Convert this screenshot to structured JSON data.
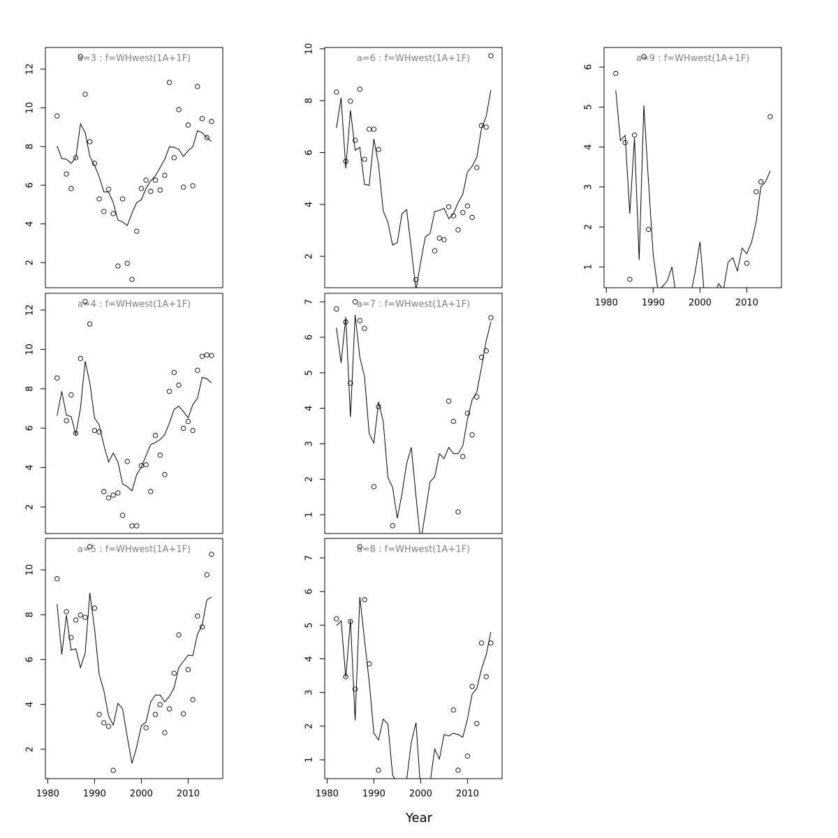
{
  "xlabel": "Year",
  "chart_data": [
    {
      "type": "line",
      "title": "a=3  :  f=WHwest(1A+1F)",
      "x": [
        1982,
        1983,
        1984,
        1985,
        1986,
        1987,
        1988,
        1989,
        1990,
        1991,
        1992,
        1993,
        1994,
        1995,
        1996,
        1997,
        1998,
        1999,
        2000,
        2001,
        2002,
        2003,
        2004,
        2005,
        2006,
        2007,
        2008,
        2009,
        2010,
        2011,
        2012,
        2013,
        2014,
        2015
      ],
      "xlim": [
        1979.5,
        2017.4
      ],
      "ylim": [
        0.7,
        13.12
      ],
      "yticks": [
        2,
        4,
        6,
        8,
        10,
        12
      ],
      "series": [
        {
          "marker": "line",
          "color": "#000000",
          "values": [
            8.03,
            7.38,
            7.34,
            7.13,
            7.42,
            9.18,
            8.71,
            7.49,
            7.02,
            6.44,
            5.65,
            5.65,
            5.1,
            4.2,
            4.1,
            3.91,
            4.56,
            5.1,
            5.25,
            5.83,
            6.22,
            6.48,
            6.91,
            7.34,
            7.99,
            7.96,
            7.85,
            7.49,
            7.78,
            7.99,
            8.82,
            8.71,
            8.46,
            8.25
          ]
        },
        {
          "marker": "circle",
          "color": "#000000",
          "values": [
            9.58,
            null,
            6.58,
            5.83,
            7.42,
            12.65,
            10.7,
            8.25,
            7.13,
            5.29,
            4.64,
            5.79,
            4.53,
            1.82,
            5.29,
            1.96,
            1.13,
            3.62,
            5.83,
            6.26,
            5.68,
            6.26,
            5.75,
            6.51,
            11.31,
            7.42,
            9.91,
            5.9,
            9.11,
            5.97,
            11.1,
            9.44,
            8.46,
            9.29
          ]
        }
      ]
    },
    {
      "type": "line",
      "title": "a=4  :  f=WHwest(1A+1F)",
      "x": [
        1982,
        1983,
        1984,
        1985,
        1986,
        1987,
        1988,
        1989,
        1990,
        1991,
        1992,
        1993,
        1994,
        1995,
        1996,
        1997,
        1998,
        1999,
        2000,
        2001,
        2002,
        2003,
        2004,
        2005,
        2006,
        2007,
        2008,
        2009,
        2010,
        2011,
        2012,
        2013,
        2014,
        2015
      ],
      "xlim": [
        1979.5,
        2017.4
      ],
      "ylim": [
        0.65,
        12.85
      ],
      "yticks": [
        2,
        4,
        6,
        8,
        10,
        12
      ],
      "series": [
        {
          "marker": "line",
          "color": "#000000",
          "values": [
            6.63,
            7.87,
            6.66,
            6.59,
            5.67,
            7.02,
            9.4,
            8.3,
            6.52,
            6.16,
            5.13,
            4.28,
            4.74,
            4.28,
            3.17,
            3.03,
            2.82,
            3.64,
            4.03,
            4.6,
            5.17,
            5.27,
            5.42,
            5.67,
            6.27,
            6.95,
            7.12,
            6.84,
            6.52,
            7.2,
            7.52,
            8.58,
            8.51,
            8.3
          ]
        },
        {
          "marker": "circle",
          "color": "#000000",
          "values": [
            8.55,
            null,
            6.38,
            7.69,
            5.74,
            9.54,
            12.43,
            11.29,
            5.88,
            5.81,
            2.78,
            2.46,
            2.6,
            2.71,
            1.57,
            4.31,
            1.04,
            1.04,
            4.1,
            4.14,
            2.78,
            5.63,
            4.63,
            3.64,
            7.87,
            8.83,
            8.19,
            5.99,
            6.34,
            5.88,
            8.94,
            9.65,
            9.72,
            9.69
          ]
        }
      ]
    },
    {
      "type": "line",
      "title": "a=5  :  f=WHwest(1A+1F)",
      "x": [
        1982,
        1983,
        1984,
        1985,
        1986,
        1987,
        1988,
        1989,
        1990,
        1991,
        1992,
        1993,
        1994,
        1995,
        1996,
        1997,
        1998,
        1999,
        2000,
        2001,
        2002,
        2003,
        2004,
        2005,
        2006,
        2007,
        2008,
        2009,
        2010,
        2011,
        2012,
        2013,
        2014,
        2015
      ],
      "xlim": [
        1979.5,
        2017.4
      ],
      "ylim": [
        0.69,
        11.4
      ],
      "yticks": [
        2,
        4,
        6,
        8,
        10
      ],
      "xticks": [
        1980,
        1990,
        2000,
        2010
      ],
      "series": [
        {
          "marker": "line",
          "color": "#000000",
          "values": [
            8.47,
            6.23,
            7.98,
            6.42,
            6.48,
            5.64,
            6.29,
            8.97,
            7.38,
            5.33,
            4.61,
            3.49,
            3.08,
            4.05,
            3.8,
            2.55,
            1.37,
            2.09,
            3.05,
            3.21,
            4.11,
            4.42,
            4.42,
            4.11,
            4.36,
            4.74,
            5.64,
            5.92,
            6.2,
            6.17,
            7.13,
            7.54,
            8.66,
            8.79
          ]
        },
        {
          "marker": "circle",
          "color": "#000000",
          "values": [
            9.6,
            null,
            8.13,
            6.98,
            7.76,
            7.98,
            7.88,
            11.03,
            8.29,
            3.55,
            3.18,
            3.02,
            1.06,
            null,
            null,
            null,
            null,
            null,
            null,
            2.96,
            null,
            3.55,
            3.99,
            2.74,
            3.8,
            5.39,
            7.1,
            3.58,
            5.55,
            4.21,
            7.94,
            7.45,
            9.78,
            10.69
          ]
        }
      ]
    },
    {
      "type": "line",
      "title": "a=6  :  f=WHwest(1A+1F)",
      "x": [
        1982,
        1983,
        1984,
        1985,
        1986,
        1987,
        1988,
        1989,
        1990,
        1991,
        1992,
        1993,
        1994,
        1995,
        1996,
        1997,
        1998,
        1999,
        2000,
        2001,
        2002,
        2003,
        2004,
        2005,
        2006,
        2007,
        2008,
        2009,
        2010,
        2011,
        2012,
        2013,
        2014,
        2015
      ],
      "xlim": [
        1979.5,
        2017.4
      ],
      "ylim": [
        0.79,
        10.05
      ],
      "yticks": [
        2,
        4,
        6,
        8,
        10
      ],
      "series": [
        {
          "marker": "line",
          "color": "#000000",
          "values": [
            6.95,
            8.11,
            5.39,
            7.63,
            6.09,
            6.2,
            4.77,
            4.74,
            6.52,
            5.53,
            3.75,
            3.32,
            2.43,
            2.53,
            3.64,
            3.8,
            2.29,
            0.7,
            1.78,
            2.75,
            2.88,
            3.72,
            3.77,
            3.85,
            3.45,
            3.64,
            4.07,
            4.39,
            5.26,
            5.47,
            5.82,
            6.93,
            7.39,
            8.41
          ]
        },
        {
          "marker": "circle",
          "color": "#000000",
          "values": [
            8.33,
            null,
            5.66,
            7.98,
            6.47,
            8.44,
            5.74,
            6.9,
            6.9,
            6.12,
            null,
            null,
            null,
            null,
            null,
            null,
            null,
            1.1,
            null,
            null,
            null,
            2.21,
            2.7,
            2.64,
            3.91,
            3.56,
            3.02,
            3.69,
            3.94,
            3.5,
            5.42,
            7.04,
            6.98,
            9.73
          ]
        }
      ]
    },
    {
      "type": "line",
      "title": "a=7  :  f=WHwest(1A+1F)",
      "x": [
        1982,
        1983,
        1984,
        1985,
        1986,
        1987,
        1988,
        1989,
        1990,
        1991,
        1992,
        1993,
        1994,
        1995,
        1996,
        1997,
        1998,
        1999,
        2000,
        2001,
        2002,
        2003,
        2004,
        2005,
        2006,
        2007,
        2008,
        2009,
        2010,
        2011,
        2012,
        2013,
        2014,
        2015
      ],
      "xlim": [
        1979.5,
        2017.4
      ],
      "ylim": [
        0.47,
        7.24
      ],
      "yticks": [
        1,
        2,
        3,
        4,
        5,
        6,
        7
      ],
      "series": [
        {
          "marker": "line",
          "color": "#000000",
          "values": [
            6.27,
            5.28,
            6.57,
            3.75,
            6.63,
            5.44,
            4.89,
            3.29,
            3.02,
            4.18,
            3.63,
            2.05,
            1.77,
            0.9,
            1.58,
            2.44,
            2.9,
            1.52,
            0.23,
            1.06,
            1.93,
            2.07,
            2.72,
            2.58,
            2.9,
            2.72,
            2.72,
            2.94,
            3.69,
            4.24,
            4.46,
            5.15,
            5.9,
            6.43
          ]
        },
        {
          "marker": "circle",
          "color": "#000000",
          "values": [
            6.8,
            null,
            6.43,
            4.71,
            7.0,
            6.47,
            6.25,
            null,
            1.79,
            4.04,
            null,
            null,
            0.69,
            null,
            null,
            null,
            null,
            null,
            null,
            null,
            null,
            null,
            null,
            null,
            4.2,
            3.63,
            1.08,
            2.64,
            3.86,
            3.25,
            4.32,
            5.44,
            5.62,
            6.55
          ]
        }
      ]
    },
    {
      "type": "line",
      "title": "a=8  :  f=WHwest(1A+1F)",
      "x": [
        1982,
        1983,
        1984,
        1985,
        1986,
        1987,
        1988,
        1989,
        1990,
        1991,
        1992,
        1993,
        1994,
        1995,
        1996,
        1997,
        1998,
        1999,
        2000,
        2001,
        2002,
        2003,
        2004,
        2005,
        2006,
        2007,
        2008,
        2009,
        2010,
        2011,
        2012,
        2013,
        2014,
        2015
      ],
      "xlim": [
        1979.5,
        2017.4
      ],
      "ylim": [
        0.44,
        7.58
      ],
      "yticks": [
        1,
        2,
        3,
        4,
        5,
        6,
        7
      ],
      "xticks": [
        1980,
        1990,
        2000,
        2010
      ],
      "series": [
        {
          "marker": "line",
          "color": "#000000",
          "values": [
            4.99,
            5.13,
            3.45,
            5.15,
            2.17,
            5.84,
            4.57,
            3.33,
            1.79,
            1.59,
            2.21,
            2.06,
            0.55,
            0.3,
            0.1,
            0.4,
            1.52,
            2.1,
            0.1,
            0.1,
            0.3,
            1.32,
            1.02,
            1.75,
            1.71,
            1.79,
            1.75,
            1.67,
            2.21,
            2.95,
            3.12,
            3.7,
            4.12,
            4.8
          ]
        },
        {
          "marker": "circle",
          "color": "#000000",
          "values": [
            5.19,
            null,
            3.47,
            5.11,
            3.1,
            7.33,
            5.76,
            3.85,
            null,
            0.69,
            null,
            null,
            null,
            null,
            null,
            null,
            null,
            null,
            null,
            null,
            null,
            null,
            null,
            null,
            null,
            2.48,
            0.69,
            null,
            1.11,
            3.18,
            2.08,
            4.47,
            3.47,
            4.47
          ]
        }
      ]
    },
    {
      "type": "line",
      "title": "a=9  :  f=WHwest(1A+1F)",
      "x": [
        1982,
        1983,
        1984,
        1985,
        1986,
        1987,
        1988,
        1989,
        1990,
        1991,
        1992,
        1993,
        1994,
        1995,
        1996,
        1997,
        1998,
        1999,
        2000,
        2001,
        2002,
        2003,
        2004,
        2005,
        2006,
        2007,
        2008,
        2009,
        2010,
        2011,
        2012,
        2013,
        2014,
        2015
      ],
      "xlim": [
        1979.5,
        2017.4
      ],
      "ylim": [
        0.48,
        6.49
      ],
      "yticks": [
        1,
        2,
        3,
        4,
        5,
        6
      ],
      "xticks": [
        1980,
        1990,
        2000,
        2010
      ],
      "series": [
        {
          "marker": "line",
          "color": "#000000",
          "values": [
            5.42,
            4.16,
            4.29,
            2.33,
            4.23,
            1.17,
            5.04,
            3.12,
            1.31,
            0.42,
            0.51,
            0.65,
            1.0,
            0.2,
            0.2,
            0.2,
            0.3,
            0.9,
            1.63,
            0.2,
            0.2,
            0.3,
            0.58,
            0.42,
            1.12,
            1.23,
            0.9,
            1.47,
            1.33,
            1.61,
            2.12,
            3.0,
            3.13,
            3.4
          ]
        },
        {
          "marker": "circle",
          "color": "#000000",
          "values": [
            5.84,
            null,
            4.11,
            0.69,
            4.3,
            null,
            6.26,
            1.94,
            null,
            null,
            null,
            null,
            null,
            null,
            null,
            null,
            null,
            null,
            null,
            null,
            null,
            null,
            null,
            null,
            null,
            null,
            null,
            null,
            1.09,
            null,
            2.88,
            3.13,
            null,
            4.76
          ]
        }
      ]
    }
  ]
}
